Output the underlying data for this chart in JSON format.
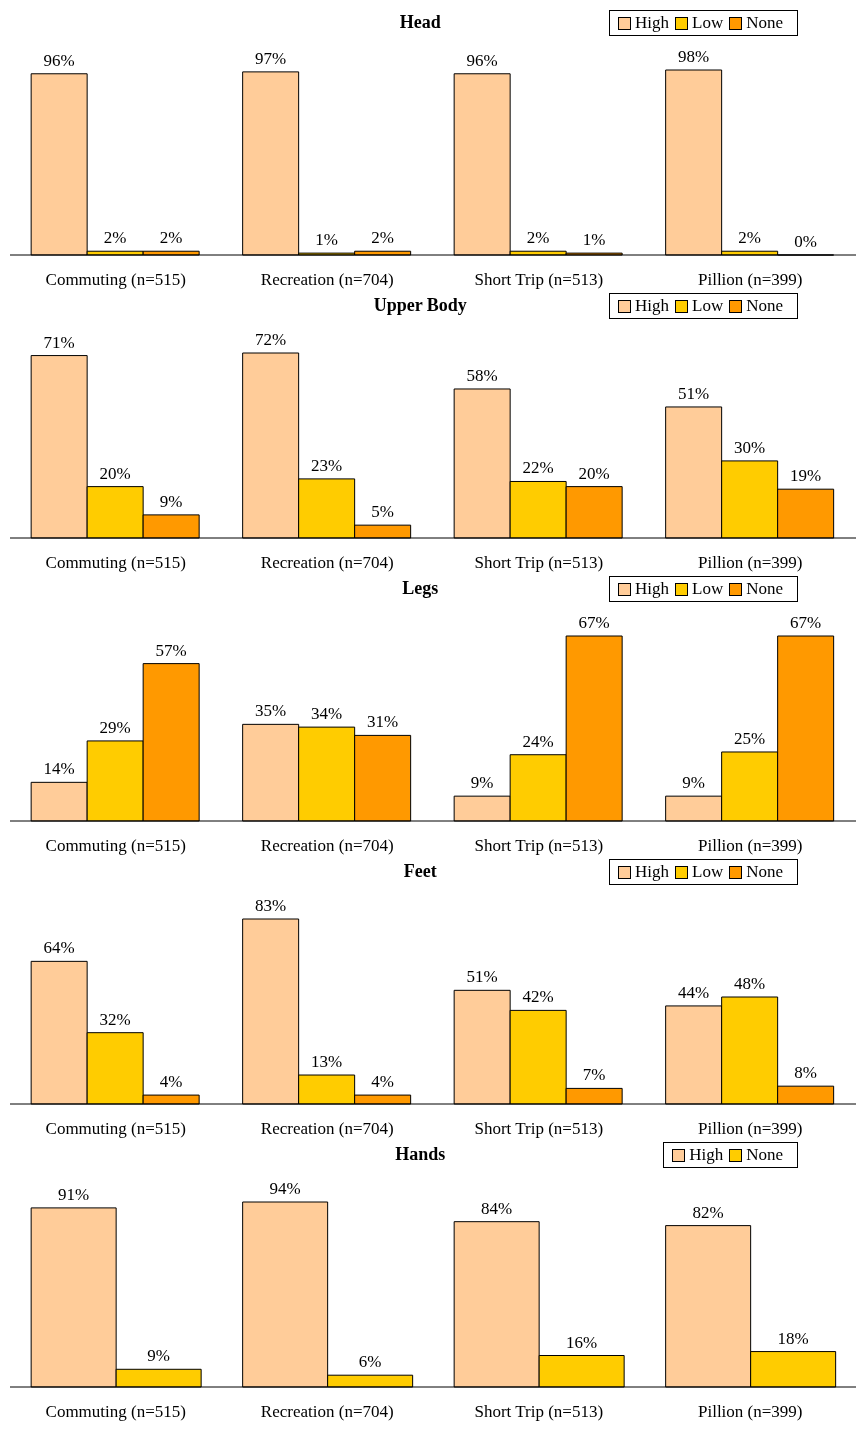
{
  "chart_data": [
    {
      "type": "bar",
      "title": "Head",
      "categories": [
        "Commuting (n=515)",
        "Recreation (n=704)",
        "Short Trip (n=513)",
        "Pillion (n=399)"
      ],
      "legend": "top right",
      "series": [
        {
          "name": "High",
          "color": "#ffcc99",
          "values": [
            96,
            97,
            96,
            98
          ],
          "value_labels": [
            "96%",
            "97%",
            "96%",
            "98%"
          ]
        },
        {
          "name": "Low",
          "color": "#ffcc00",
          "values": [
            2,
            1,
            2,
            2
          ],
          "value_labels": [
            "2%",
            "1%",
            "2%",
            "2%"
          ]
        },
        {
          "name": "None",
          "color": "#ff9900",
          "values": [
            2,
            2,
            1,
            0
          ],
          "value_labels": [
            "2%",
            "2%",
            "1%",
            "0%"
          ]
        }
      ]
    },
    {
      "type": "bar",
      "title": "Upper Body",
      "categories": [
        "Commuting (n=515)",
        "Recreation (n=704)",
        "Short Trip (n=513)",
        "Pillion (n=399)"
      ],
      "legend": "top right",
      "series": [
        {
          "name": "High",
          "color": "#ffcc99",
          "values": [
            71,
            72,
            58,
            51
          ],
          "value_labels": [
            "71%",
            "72%",
            "58%",
            "51%"
          ]
        },
        {
          "name": "Low",
          "color": "#ffcc00",
          "values": [
            20,
            23,
            22,
            30
          ],
          "value_labels": [
            "20%",
            "23%",
            "22%",
            "30%"
          ]
        },
        {
          "name": "None",
          "color": "#ff9900",
          "values": [
            9,
            5,
            20,
            19
          ],
          "value_labels": [
            "9%",
            "5%",
            "20%",
            "19%"
          ]
        }
      ]
    },
    {
      "type": "bar",
      "title": "Legs",
      "categories": [
        "Commuting (n=515)",
        "Recreation (n=704)",
        "Short Trip (n=513)",
        "Pillion (n=399)"
      ],
      "legend": "top right",
      "series": [
        {
          "name": "High",
          "color": "#ffcc99",
          "values": [
            14,
            35,
            9,
            9
          ],
          "value_labels": [
            "14%",
            "35%",
            "9%",
            "9%"
          ]
        },
        {
          "name": "Low",
          "color": "#ffcc00",
          "values": [
            29,
            34,
            24,
            25
          ],
          "value_labels": [
            "29%",
            "34%",
            "24%",
            "25%"
          ]
        },
        {
          "name": "None",
          "color": "#ff9900",
          "values": [
            57,
            31,
            67,
            67
          ],
          "value_labels": [
            "57%",
            "31%",
            "67%",
            "67%"
          ]
        }
      ]
    },
    {
      "type": "bar",
      "title": "Feet",
      "categories": [
        "Commuting (n=515)",
        "Recreation (n=704)",
        "Short Trip (n=513)",
        "Pillion (n=399)"
      ],
      "legend": "top right",
      "series": [
        {
          "name": "High",
          "color": "#ffcc99",
          "values": [
            64,
            83,
            51,
            44
          ],
          "value_labels": [
            "64%",
            "83%",
            "51%",
            "44%"
          ]
        },
        {
          "name": "Low",
          "color": "#ffcc00",
          "values": [
            32,
            13,
            42,
            48
          ],
          "value_labels": [
            "32%",
            "13%",
            "42%",
            "48%"
          ]
        },
        {
          "name": "None",
          "color": "#ff9900",
          "values": [
            4,
            4,
            7,
            8
          ],
          "value_labels": [
            "4%",
            "4%",
            "7%",
            "8%"
          ]
        }
      ]
    },
    {
      "type": "bar",
      "title": "Hands",
      "categories": [
        "Commuting (n=515)",
        "Recreation (n=704)",
        "Short Trip (n=513)",
        "Pillion (n=399)"
      ],
      "legend": "top right",
      "series": [
        {
          "name": "High",
          "color": "#ffcc99",
          "values": [
            91,
            94,
            84,
            82
          ],
          "value_labels": [
            "91%",
            "94%",
            "84%",
            "82%"
          ]
        },
        {
          "name": "None",
          "color": "#ffcc00",
          "values": [
            9,
            6,
            16,
            18
          ],
          "value_labels": [
            "9%",
            "6%",
            "16%",
            "18%"
          ]
        }
      ]
    }
  ]
}
